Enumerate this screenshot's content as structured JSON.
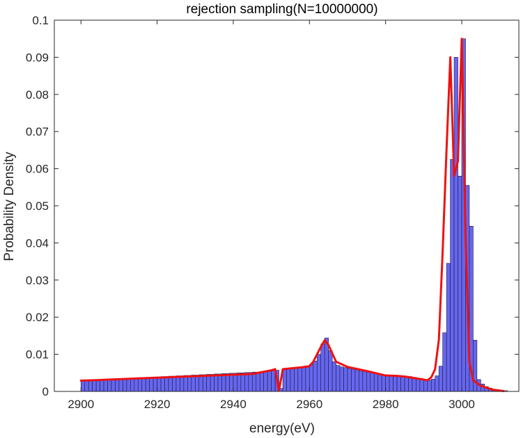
{
  "chart_data": {
    "type": "bar",
    "title": "rejection sampling(N=10000000)",
    "xlabel": "energy(eV)",
    "ylabel": "Probability Density",
    "xlim": [
      2893,
      3015
    ],
    "ylim": [
      0,
      0.1
    ],
    "xticks": [
      2900,
      2920,
      2940,
      2960,
      2980,
      3000
    ],
    "yticks": [
      0,
      0.01,
      0.02,
      0.03,
      0.04,
      0.05,
      0.06,
      0.07,
      0.08,
      0.09,
      0.1
    ],
    "grid": false,
    "legend": "none",
    "colors": {
      "bars": "#6666ee",
      "bar_edge": "#1a1a40",
      "curve": "#ee1111",
      "axes": "#262626"
    },
    "series": [
      {
        "kind": "histogram",
        "bin_width": 1,
        "x_start": 2900,
        "values": [
          0.0029,
          0.003,
          0.003,
          0.0031,
          0.0031,
          0.0032,
          0.0032,
          0.0033,
          0.0033,
          0.0034,
          0.0034,
          0.0035,
          0.0035,
          0.0036,
          0.0036,
          0.0037,
          0.0037,
          0.0038,
          0.0038,
          0.0039,
          0.0039,
          0.004,
          0.004,
          0.0041,
          0.0041,
          0.0042,
          0.0042,
          0.0043,
          0.0043,
          0.0044,
          0.0044,
          0.0045,
          0.0045,
          0.0046,
          0.0046,
          0.0047,
          0.0047,
          0.0048,
          0.0048,
          0.0049,
          0.0049,
          0.005,
          0.005,
          0.0051,
          0.0051,
          0.0052,
          0.0052,
          0.0053,
          0.0054,
          0.0055,
          0.0056,
          0.0057,
          0.0008,
          0.006,
          0.0061,
          0.0062,
          0.0063,
          0.0064,
          0.0066,
          0.0068,
          0.0073,
          0.0082,
          0.01,
          0.0128,
          0.0144,
          0.011,
          0.008,
          0.007,
          0.0066,
          0.0064,
          0.0062,
          0.006,
          0.0058,
          0.0056,
          0.0054,
          0.0052,
          0.005,
          0.0048,
          0.0046,
          0.0045,
          0.0044,
          0.0043,
          0.0043,
          0.0043,
          0.0042,
          0.0041,
          0.004,
          0.0038,
          0.0036,
          0.0034,
          0.0032,
          0.003,
          0.0033,
          0.0042,
          0.0068,
          0.0158,
          0.0345,
          0.0625,
          0.09,
          0.058,
          0.095,
          0.0555,
          0.0445,
          0.0138,
          0.0032,
          0.002,
          0.0013,
          0.0009,
          0.0006,
          0.0004,
          0.0003,
          0.0002
        ]
      },
      {
        "kind": "line",
        "x": [
          2900,
          2905,
          2910,
          2915,
          2920,
          2925,
          2930,
          2935,
          2940,
          2945,
          2950,
          2951,
          2952,
          2953,
          2955,
          2958,
          2960,
          2961,
          2962,
          2963,
          2964,
          2965,
          2967,
          2970,
          2975,
          2980,
          2983,
          2985,
          2990,
          2991,
          2992,
          2993,
          2994,
          2995,
          2996,
          2997,
          2998,
          2999,
          3000,
          3001,
          3002,
          3003,
          3005,
          3008,
          3011
        ],
        "y": [
          0.0029,
          0.0031,
          0.0033,
          0.0035,
          0.0037,
          0.0039,
          0.0041,
          0.0043,
          0.0045,
          0.0047,
          0.0057,
          0.006,
          0.0002,
          0.006,
          0.0062,
          0.0065,
          0.0068,
          0.008,
          0.01,
          0.012,
          0.0138,
          0.0125,
          0.008,
          0.0066,
          0.0055,
          0.0043,
          0.0042,
          0.004,
          0.0032,
          0.003,
          0.0038,
          0.006,
          0.014,
          0.038,
          0.065,
          0.09,
          0.058,
          0.062,
          0.095,
          0.042,
          0.008,
          0.003,
          0.0015,
          0.0005,
          0.0001
        ]
      }
    ]
  }
}
